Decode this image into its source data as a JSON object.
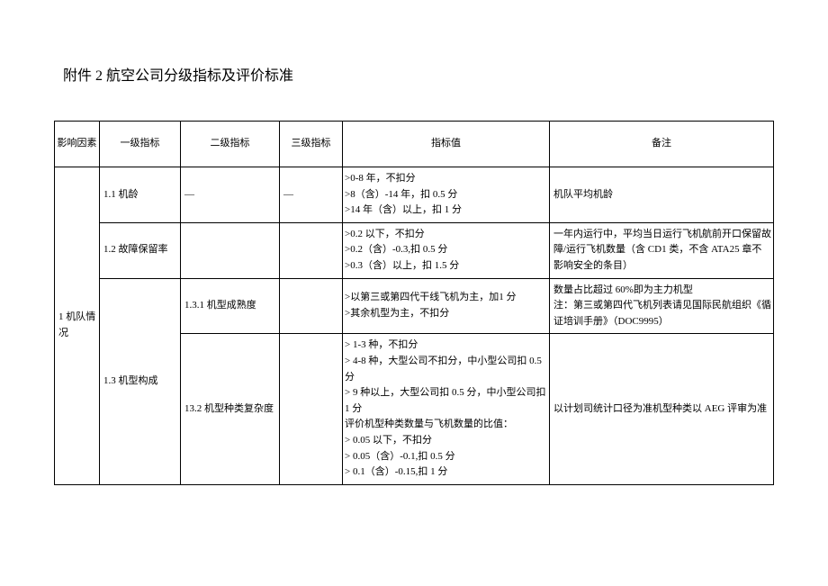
{
  "title": "附件 2 航空公司分级指标及评价标准",
  "headers": {
    "factor": "影响因素",
    "level1": "一级指标",
    "level2": "二级指标",
    "level3": "三级指标",
    "value": "指标值",
    "note": "备注"
  },
  "factor1": "1 机队情况",
  "row1": {
    "l1": "1.1 机龄",
    "l2": "—",
    "l3": "—",
    "val_a": ">0-8 年，不扣分",
    "val_b": ">8（含）-14 年，扣 0.5 分",
    "val_c": ">14 年（含）以上，扣 1 分",
    "note": "机队平均机龄"
  },
  "row2": {
    "l1": "1.2 故障保留率",
    "val_a": ">0.2 以下，不扣分",
    "val_b": ">0.2（含）-0.3,扣 0.5 分",
    "val_c": ">0.3（含）以上，扣 1.5 分",
    "note": "一年内运行中，平均当日运行飞机航前开口保留故障/运行飞机数量（含 CD1 类，不含 ATA25 章不影响安全的条目）"
  },
  "row3": {
    "l1": "1.3 机型构成",
    "l2": "1.3.1 机型成熟度",
    "val_a": ">以第三或第四代干线飞机为主，加1 分",
    "val_b": ">其余机型为主，不扣分",
    "note": "数量占比超过 60%即为主力机型\n注：第三或第四代飞机列表请见国际民航组织《循证培训手册》（DOC9995）"
  },
  "row4": {
    "l2": "13.2 机型种类复杂度",
    "val_a": ">    1-3 种，不扣分",
    "val_b": ">    4-8 种，大型公司不扣分，中小型公司扣 0.5 分",
    "val_c": ">    9 种以上，大型公司扣 0.5 分，中小型公司扣 1 分",
    "val_d": "评价机型种类数量与飞机数量的比值：",
    "val_e": ">    0.05 以下，不扣分",
    "val_f": ">    0.05（含）-0.1,扣 0.5 分",
    "val_g": ">    0.1（含）-0.15,扣 1 分",
    "note": "以计划司统计口径为准机型种类以 AEG 评审为准"
  }
}
